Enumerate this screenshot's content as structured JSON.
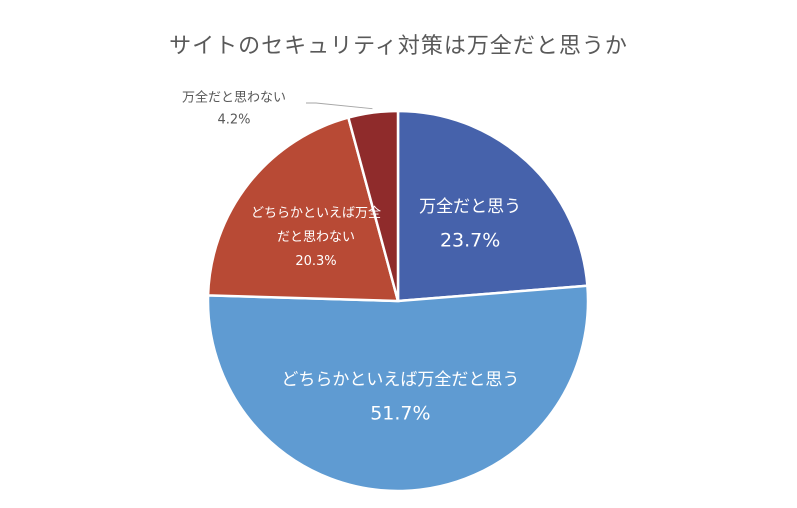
{
  "chart_data": {
    "type": "pie",
    "title": "サイトのセキュリティ対策は万全だと思うか",
    "slices": [
      {
        "name": "万全だと思う",
        "label_lines": [
          "万全だと思う"
        ],
        "value": 23.7,
        "value_label": "23.7%",
        "color": "#4662AB",
        "label_inside": true
      },
      {
        "name": "どちらかといえば万全だと思う",
        "label_lines": [
          "どちらかといえば万全だと思う"
        ],
        "value": 51.7,
        "value_label": "51.7%",
        "color": "#5F9BD2",
        "label_inside": true
      },
      {
        "name": "どちらかといえば万全だと思わない",
        "label_lines": [
          "どちらかといえば万全",
          "だと思わない"
        ],
        "value": 20.3,
        "value_label": "20.3%",
        "color": "#B84A35",
        "label_inside": true
      },
      {
        "name": "万全だと思わない",
        "label_lines": [
          "万全だと思わない"
        ],
        "value": 4.2,
        "value_label": "4.2%",
        "color": "#8F2B2B",
        "label_inside": false
      }
    ],
    "legend": "none"
  }
}
